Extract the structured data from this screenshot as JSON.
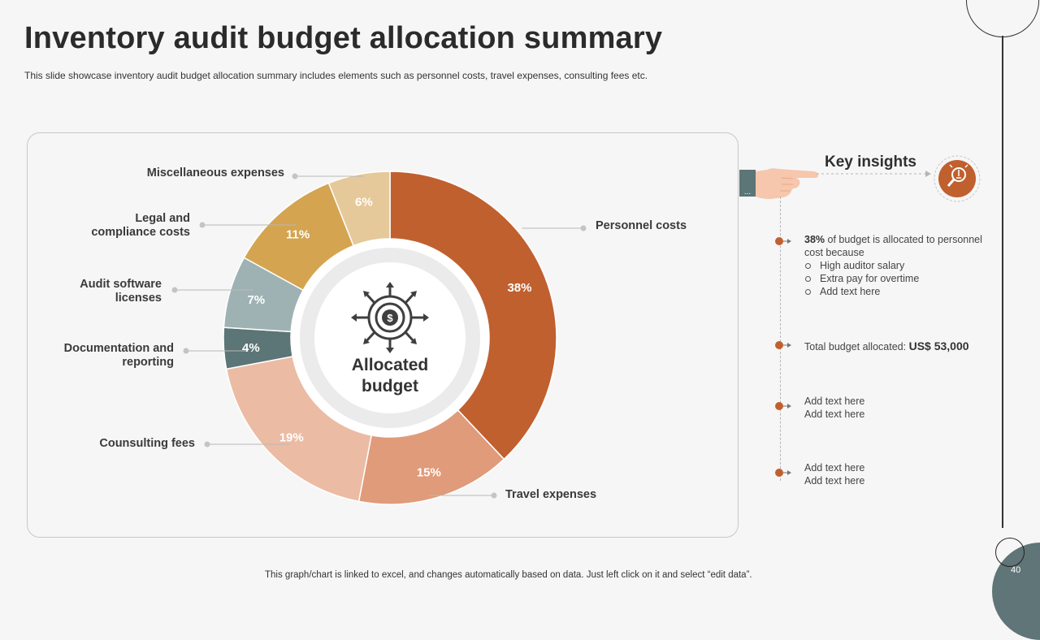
{
  "slide": {
    "title": "Inventory audit budget allocation summary",
    "subtitle": "This slide showcase inventory audit budget allocation summary includes elements such as personnel costs, travel expenses, consulting fees etc.",
    "footer": "This graph/chart is linked to excel,  and changes automatically based on data. Just left click on it and select “edit data”.",
    "page_number": "40"
  },
  "chart_data": {
    "type": "pie",
    "subtype": "donut",
    "center_label": [
      "Allocated",
      "budget"
    ],
    "unit": "%",
    "slices": [
      {
        "name": "Personnel costs",
        "label_lines": [
          "Personnel costs"
        ],
        "value": 38,
        "color": "#c0602f"
      },
      {
        "name": "Travel expenses",
        "label_lines": [
          "Travel expenses"
        ],
        "value": 15,
        "color": "#e09b7a"
      },
      {
        "name": "Counsulting fees",
        "label_lines": [
          "Counsulting fees"
        ],
        "value": 19,
        "color": "#ecbba4"
      },
      {
        "name": "Documentation and reporting",
        "label_lines": [
          "Documentation and",
          "reporting"
        ],
        "value": 4,
        "color": "#5c7576"
      },
      {
        "name": "Audit software licenses",
        "label_lines": [
          "Audit software",
          "licenses"
        ],
        "value": 7,
        "color": "#9fb2b3"
      },
      {
        "name": "Legal and compliance costs",
        "label_lines": [
          "Legal and",
          "compliance costs"
        ],
        "value": 11,
        "color": "#d4a451"
      },
      {
        "name": "Miscellaneous expenses",
        "label_lines": [
          "Miscellaneous expenses"
        ],
        "value": 6,
        "color": "#e6c99a"
      }
    ]
  },
  "insights": {
    "title": "Key insights",
    "hand_tab_label": "...",
    "item1": {
      "value": "38%",
      "text": " of budget is allocated to personnel cost because",
      "subitems": [
        "High auditor salary",
        "Extra pay for overtime",
        "Add text here"
      ]
    },
    "item2": {
      "label": "Total budget allocated: ",
      "value": "US$ 53,000"
    },
    "item3": {
      "line1": "Add text here",
      "line2": "Add text here"
    },
    "item4": {
      "line1": "Add text here",
      "line2": "Add text here"
    }
  },
  "colors": {
    "accent": "#c0602f",
    "teal": "#5c7576"
  }
}
